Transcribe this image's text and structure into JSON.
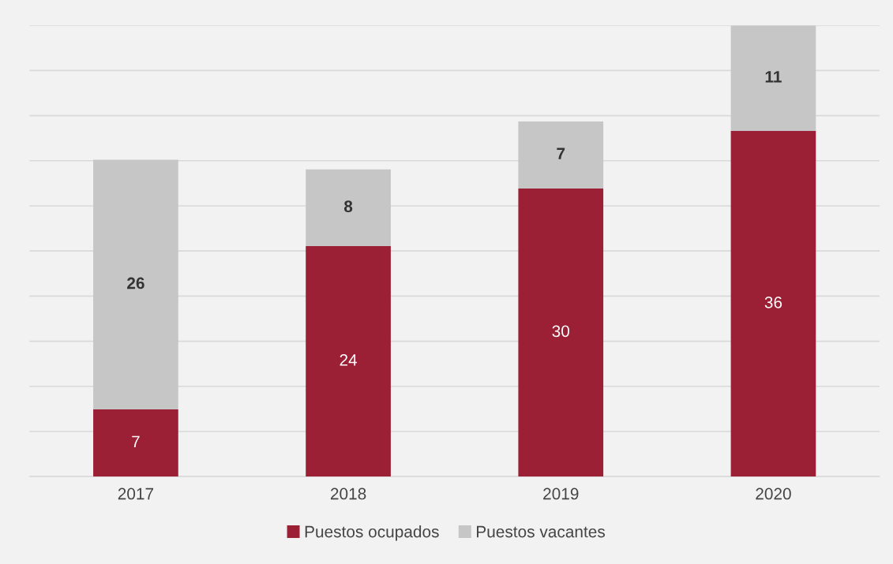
{
  "chart_data": {
    "type": "bar",
    "stacked": true,
    "data_labels": true,
    "grid": "y",
    "legend": "bottom",
    "categories": [
      "2017",
      "2018",
      "2019",
      "2020"
    ],
    "series": [
      {
        "name": "Puestos ocupados",
        "color": "#9b2035",
        "values": [
          7,
          24,
          30,
          36
        ]
      },
      {
        "name": "Puestos vacantes",
        "color": "#c6c6c6",
        "values": [
          26,
          8,
          7,
          11
        ]
      }
    ]
  }
}
